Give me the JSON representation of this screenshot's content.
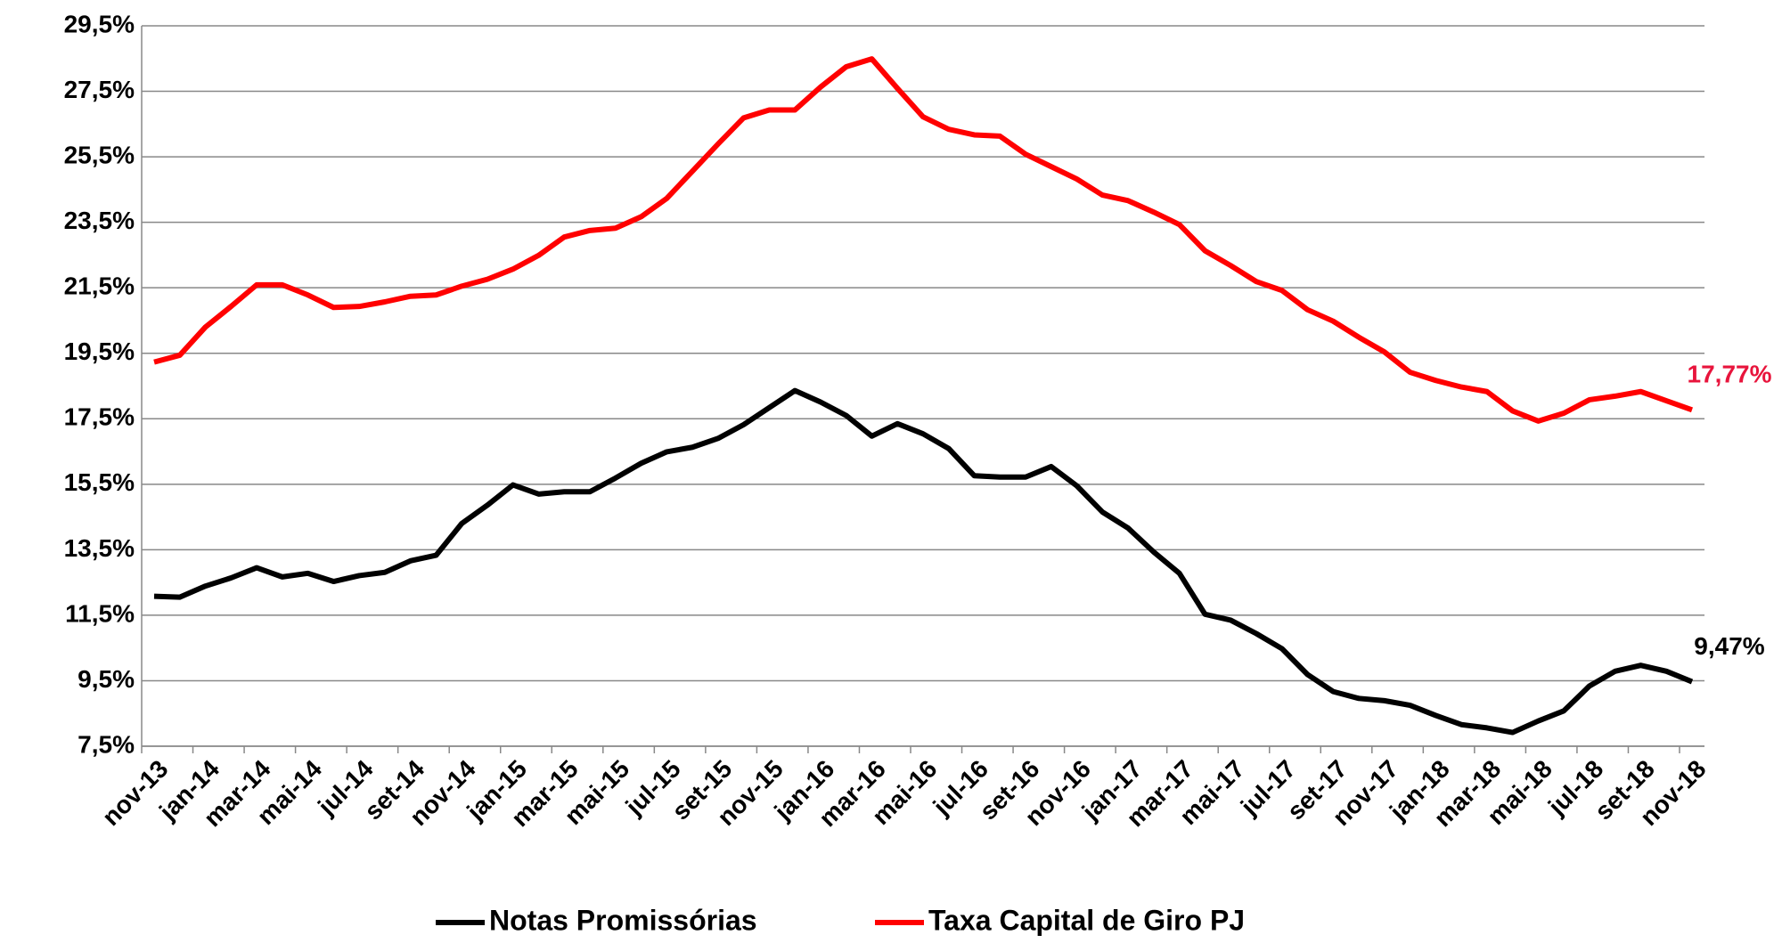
{
  "chart_data": {
    "type": "line",
    "categories": [
      "nov-13",
      null,
      "jan-14",
      null,
      "mar-14",
      null,
      "mai-14",
      null,
      "jul-14",
      null,
      "set-14",
      null,
      "nov-14",
      null,
      "jan-15",
      null,
      "mar-15",
      null,
      "mai-15",
      null,
      "jul-15",
      null,
      "set-15",
      null,
      "nov-15",
      null,
      "jan-16",
      null,
      "mar-16",
      null,
      "mai-16",
      null,
      "jul-16",
      null,
      "set-16",
      null,
      "nov-16",
      null,
      "jan-17",
      null,
      "mar-17",
      null,
      "mai-17",
      null,
      "jul-17",
      null,
      "set-17",
      null,
      "nov-17",
      null,
      "jan-18",
      null,
      "mar-18",
      null,
      "mai-18",
      null,
      "jul-18",
      null,
      "set-18",
      null,
      "nov-18"
    ],
    "series": [
      {
        "name": "Notas Promissórias",
        "color": "#000000",
        "label_color": "#000000",
        "values": [
          12.08,
          12.05,
          12.39,
          12.64,
          12.95,
          12.67,
          12.78,
          12.53,
          12.71,
          12.81,
          13.16,
          13.33,
          14.3,
          14.86,
          15.48,
          15.2,
          15.27,
          15.27,
          15.69,
          16.14,
          16.49,
          16.63,
          16.9,
          17.32,
          17.84,
          18.36,
          18.01,
          17.6,
          16.97,
          17.35,
          17.04,
          16.59,
          15.76,
          15.72,
          15.72,
          16.04,
          15.45,
          14.65,
          14.16,
          13.43,
          12.78,
          11.53,
          11.35,
          10.94,
          10.48,
          9.69,
          9.17,
          8.96,
          8.89,
          8.75,
          8.44,
          8.16,
          8.06,
          7.92,
          8.27,
          8.58,
          9.34,
          9.79,
          9.97,
          9.79,
          9.47
        ],
        "value_labels": [
          null,
          null,
          null,
          null,
          null,
          null,
          null,
          null,
          null,
          null,
          null,
          null,
          null,
          null,
          null,
          null,
          null,
          null,
          null,
          null,
          null,
          null,
          null,
          null,
          null,
          null,
          null,
          null,
          null,
          null,
          null,
          null,
          null,
          null,
          null,
          null,
          null,
          null,
          null,
          null,
          null,
          null,
          null,
          null,
          null,
          null,
          null,
          null,
          null,
          null,
          null,
          null,
          null,
          null,
          null,
          null,
          null,
          null,
          null,
          null,
          "9,47%"
        ]
      },
      {
        "name": "Taxa Capital de Giro PJ",
        "color": "#ff0000",
        "label_color": "#e8143c",
        "values": [
          19.23,
          19.44,
          20.3,
          20.93,
          21.59,
          21.59,
          21.28,
          20.9,
          20.93,
          21.07,
          21.24,
          21.28,
          21.55,
          21.76,
          22.07,
          22.49,
          23.05,
          23.25,
          23.32,
          23.67,
          24.23,
          25.06,
          25.89,
          26.69,
          26.93,
          26.93,
          27.63,
          28.25,
          28.49,
          27.59,
          26.72,
          26.34,
          26.17,
          26.13,
          25.58,
          25.2,
          24.82,
          24.33,
          24.16,
          23.81,
          23.43,
          22.63,
          22.18,
          21.69,
          21.42,
          20.83,
          20.48,
          19.99,
          19.54,
          18.92,
          18.67,
          18.47,
          18.33,
          17.74,
          17.43,
          17.67,
          18.08,
          18.19,
          18.33,
          18.05,
          17.77
        ],
        "value_labels": [
          null,
          null,
          null,
          null,
          null,
          null,
          null,
          null,
          null,
          null,
          null,
          null,
          null,
          null,
          null,
          null,
          null,
          null,
          null,
          null,
          null,
          null,
          null,
          null,
          null,
          null,
          null,
          null,
          null,
          null,
          null,
          null,
          null,
          null,
          null,
          null,
          null,
          null,
          null,
          null,
          null,
          null,
          null,
          null,
          null,
          null,
          null,
          null,
          null,
          null,
          null,
          null,
          null,
          null,
          null,
          null,
          null,
          null,
          null,
          null,
          "17,77%"
        ]
      }
    ],
    "ylim": [
      7.5,
      29.5
    ],
    "yticks": [
      {
        "value": 7.5,
        "label": "7,5%"
      },
      {
        "value": 9.5,
        "label": "9,5%"
      },
      {
        "value": 11.5,
        "label": "11,5%"
      },
      {
        "value": 13.5,
        "label": "13,5%"
      },
      {
        "value": 15.5,
        "label": "15,5%"
      },
      {
        "value": 17.5,
        "label": "17,5%"
      },
      {
        "value": 19.5,
        "label": "19,5%"
      },
      {
        "value": 21.5,
        "label": "21,5%"
      },
      {
        "value": 23.5,
        "label": "23,5%"
      },
      {
        "value": 25.5,
        "label": "25,5%"
      },
      {
        "value": 27.5,
        "label": "27,5%"
      },
      {
        "value": 29.5,
        "label": "29,5%"
      }
    ],
    "grid": true,
    "legend": "bottom"
  }
}
